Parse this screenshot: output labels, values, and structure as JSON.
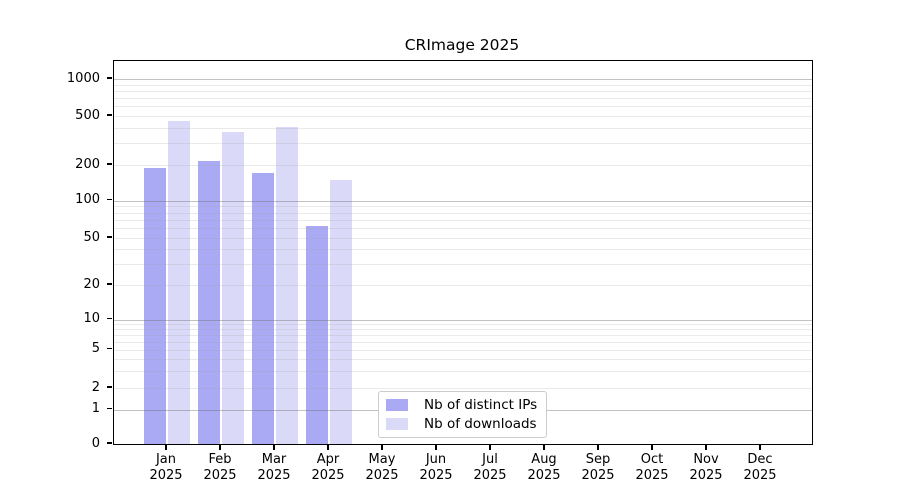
{
  "title": "CRImage 2025",
  "chart_data": {
    "type": "bar",
    "title": "CRImage 2025",
    "categories": [
      "Jan",
      "Feb",
      "Mar",
      "Apr",
      "May",
      "Jun",
      "Jul",
      "Aug",
      "Sep",
      "Oct",
      "Nov",
      "Dec"
    ],
    "year": "2025",
    "series": [
      {
        "name": "Nb of distinct IPs",
        "color": "#a9a9f4",
        "values": [
          190,
          215,
          172,
          62,
          0,
          0,
          0,
          0,
          0,
          0,
          0,
          0
        ]
      },
      {
        "name": "Nb of downloads",
        "color": "#dadaf8",
        "values": [
          460,
          370,
          410,
          150,
          0,
          0,
          0,
          0,
          0,
          0,
          0,
          0
        ]
      }
    ],
    "xlabel": "",
    "ylabel": "",
    "yscale": "symlog",
    "yticks": [
      0,
      1,
      2,
      5,
      10,
      20,
      50,
      100,
      200,
      500,
      1000
    ],
    "ylim": [
      0,
      1400
    ],
    "grid": true,
    "legend_position": "lower-center"
  },
  "colors": {
    "distinct_ips": "#a9a9f4",
    "downloads": "#dadaf8",
    "major_grid": "#bcbcbc",
    "minor_grid": "#ebebeb",
    "axis": "#000000"
  }
}
